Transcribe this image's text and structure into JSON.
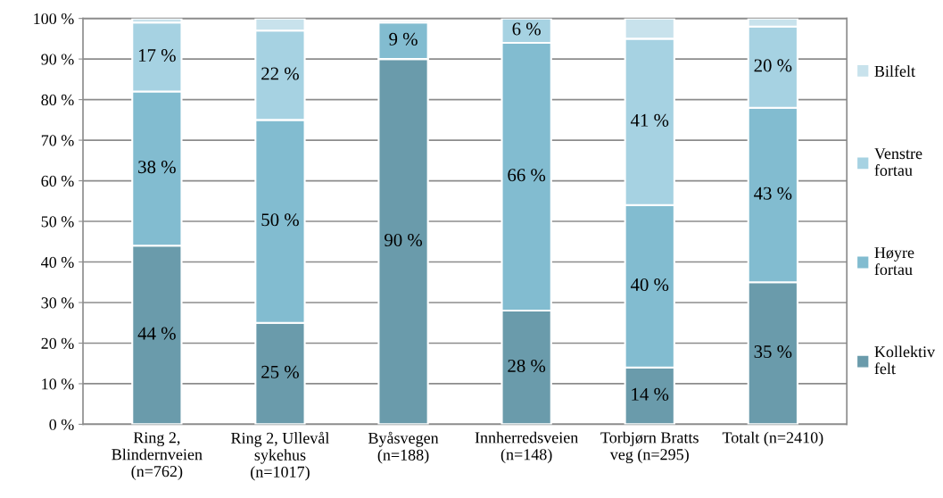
{
  "chart_data": {
    "type": "bar",
    "stacked": true,
    "categories": [
      "Ring 2,\nBlindernveien\n(n=762)",
      "Ring 2, Ullevål\nsykehus\n(n=1017)",
      "Byåsvegen\n(n=188)",
      "Innherredsveien\n(n=148)",
      "Torbjørn Bratts\nveg (n=295)",
      "Totalt (n=2410)"
    ],
    "series": [
      {
        "name": "Kollektiv felt",
        "color": "#6a9bab",
        "values": [
          44,
          25,
          90,
          28,
          14,
          35
        ],
        "value_labels": [
          "44 %",
          "25 %",
          "90 %",
          "28 %",
          "14 %",
          "35 %"
        ]
      },
      {
        "name": "Høyre fortau",
        "color": "#82bcd0",
        "values": [
          38,
          50,
          9,
          66,
          40,
          43
        ],
        "value_labels": [
          "38 %",
          "50 %",
          "9 %",
          "66 %",
          "40 %",
          "43 %"
        ]
      },
      {
        "name": "Venstre fortau",
        "color": "#a6d2e2",
        "values": [
          17,
          22,
          null,
          6,
          41,
          20
        ],
        "value_labels": [
          "17 %",
          "22 %",
          null,
          "6 %",
          "41 %",
          "20 %"
        ]
      },
      {
        "name": "Bilfelt",
        "color": "#c8e2ec",
        "values": [
          1,
          3,
          0.5,
          null,
          5,
          2
        ],
        "value_labels": [
          null,
          null,
          null,
          null,
          null,
          null
        ]
      }
    ],
    "ylim": [
      0,
      100
    ],
    "yticks": [
      {
        "value": 0,
        "label": "0 %"
      },
      {
        "value": 10,
        "label": "10 %"
      },
      {
        "value": 20,
        "label": "20 %"
      },
      {
        "value": 30,
        "label": "30 %"
      },
      {
        "value": 40,
        "label": "40 %"
      },
      {
        "value": 50,
        "label": "50 %"
      },
      {
        "value": 60,
        "label": "60 %"
      },
      {
        "value": 70,
        "label": "70 %"
      },
      {
        "value": 80,
        "label": "80 %"
      },
      {
        "value": 90,
        "label": "90 %"
      },
      {
        "value": 100,
        "label": "100 %"
      }
    ],
    "grid": "y",
    "legend": "right"
  }
}
